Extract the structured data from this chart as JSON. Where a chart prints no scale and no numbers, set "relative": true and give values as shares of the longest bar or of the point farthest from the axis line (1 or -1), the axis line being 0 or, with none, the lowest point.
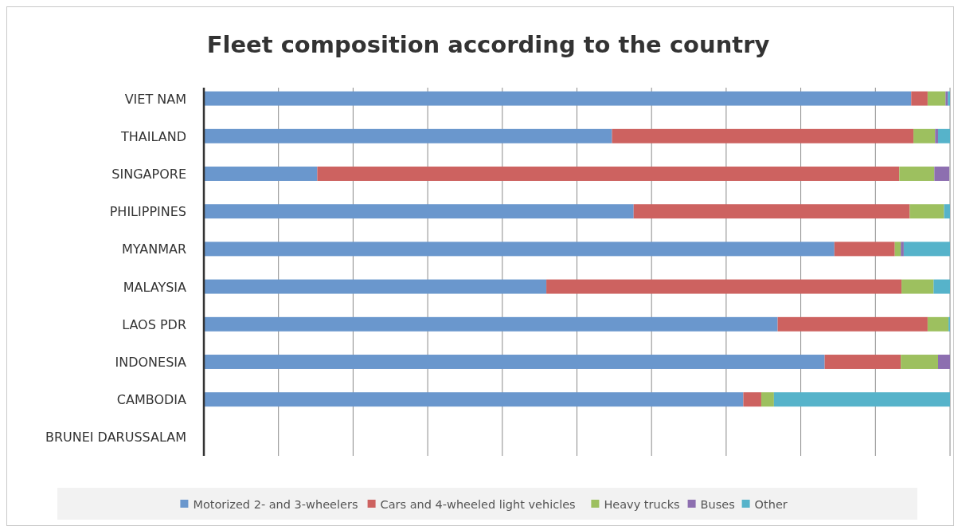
{
  "chart_data": {
    "type": "bar",
    "orientation": "horizontal",
    "stacked": true,
    "relative": true,
    "title": "Fleet composition according to the country",
    "grid": "x",
    "legend": "bottom",
    "categories": [
      "VIET NAM",
      "THAILAND",
      "SINGAPORE",
      "PHILIPPINES",
      "MYANMAR",
      "MALAYSIA",
      "LAOS PDR",
      "INDONESIA",
      "CAMBODIA",
      "BRUNEI DARUSSALAM"
    ],
    "series": [
      {
        "name": "Motorized 2- and 3-wheelers",
        "color": "#6a97cd",
        "values": [
          0.948,
          0.547,
          0.152,
          0.576,
          0.845,
          0.459,
          0.769,
          0.832,
          0.723,
          null
        ]
      },
      {
        "name": "Cars and 4-wheeled light vehicles",
        "color": "#cd6260",
        "values": [
          0.022,
          0.404,
          0.78,
          0.37,
          0.081,
          0.476,
          0.201,
          0.102,
          0.024,
          null
        ]
      },
      {
        "name": "Heavy trucks",
        "color": "#9dc05f",
        "values": [
          0.024,
          0.029,
          0.047,
          0.046,
          0.008,
          0.043,
          0.028,
          0.05,
          0.017,
          null
        ]
      },
      {
        "name": "Buses",
        "color": "#8d6fb0",
        "values": [
          0.003,
          0.004,
          0.02,
          0,
          0.004,
          0,
          0,
          0.016,
          0,
          null
        ]
      },
      {
        "name": "Other",
        "color": "#56b3ca",
        "values": [
          0.003,
          0.016,
          0,
          0.008,
          0.062,
          0.022,
          0.002,
          0,
          0.236,
          null
        ]
      }
    ]
  }
}
